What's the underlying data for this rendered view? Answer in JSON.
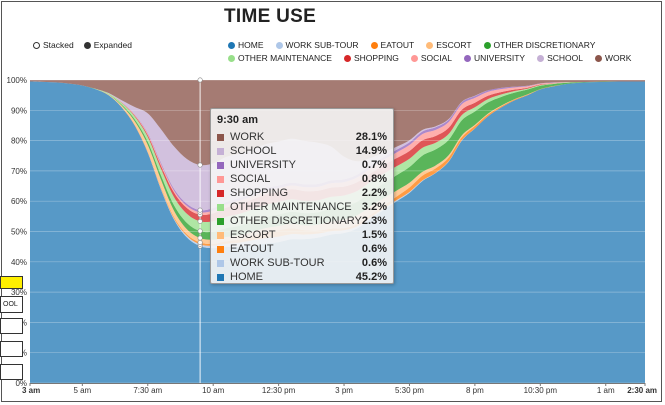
{
  "header": {
    "title": "TIME USE"
  },
  "mode_toggle": {
    "stacked": "Stacked",
    "expanded": "Expanded",
    "selected": "expanded"
  },
  "legend": [
    {
      "name": "HOME",
      "color": "#1f77b4"
    },
    {
      "name": "WORK SUB-TOUR",
      "color": "#aec7e8"
    },
    {
      "name": "EATOUT",
      "color": "#ff7f0e"
    },
    {
      "name": "ESCORT",
      "color": "#ffbb78"
    },
    {
      "name": "OTHER DISCRETIONARY",
      "color": "#2ca02c"
    },
    {
      "name": "OTHER MAINTENANCE",
      "color": "#98df8a"
    },
    {
      "name": "SHOPPING",
      "color": "#d62728"
    },
    {
      "name": "SOCIAL",
      "color": "#ff9896"
    },
    {
      "name": "UNIVERSITY",
      "color": "#9467bd"
    },
    {
      "name": "SCHOOL",
      "color": "#c5b0d5"
    },
    {
      "name": "WORK",
      "color": "#8c564b"
    }
  ],
  "chart_data": {
    "type": "area",
    "mode": "expanded",
    "x": [
      "3 am",
      "3:30 am",
      "4 am",
      "4:30 am",
      "5 am",
      "5:30 am",
      "6 am",
      "6:30 am",
      "7 am",
      "7:30 am",
      "8 am",
      "8:30 am",
      "9 am",
      "9:30 am",
      "10 am",
      "10:30 am",
      "11 am",
      "11:30 am",
      "12 pm",
      "12:30 pm",
      "1 pm",
      "1:30 pm",
      "2 pm",
      "2:30 pm",
      "3 pm",
      "3:30 pm",
      "4 pm",
      "4:30 pm",
      "5 pm",
      "5:30 pm",
      "6 pm",
      "6:30 pm",
      "7 pm",
      "7:30 pm",
      "8 pm",
      "8:30 pm",
      "9 pm",
      "9:30 pm",
      "10 pm",
      "10:30 pm",
      "11 pm",
      "11:30 pm",
      "12 am",
      "12:30 am",
      "1 am",
      "1:30 am",
      "2 am",
      "2:30 am"
    ],
    "x_ticks": [
      "3 am",
      "5 am",
      "7:30 am",
      "10 am",
      "12:30 pm",
      "3 pm",
      "5:30 pm",
      "8 pm",
      "10:30 pm",
      "1 am",
      "2:30 am"
    ],
    "ylim": [
      0,
      100
    ],
    "y_ticks": [
      "0%",
      "10%",
      "20%",
      "30%",
      "40%",
      "50%",
      "60%",
      "70%",
      "80%",
      "90%",
      "100%"
    ],
    "grid": true,
    "series": [
      {
        "name": "HOME",
        "color": "#1f77b4",
        "values": [
          99.5,
          99.4,
          99.2,
          98.8,
          98.2,
          97,
          95,
          91,
          85,
          76,
          64,
          54,
          48,
          45.2,
          44.5,
          44.5,
          45,
          45.5,
          46,
          46.5,
          47,
          47,
          47.5,
          48,
          49.5,
          51.5,
          54,
          57,
          60.5,
          64,
          68,
          72,
          76,
          80,
          84,
          88,
          91,
          93.5,
          95.5,
          97,
          98,
          98.7,
          99.1,
          99.3,
          99.4,
          99.5,
          99.5,
          99.5
        ]
      },
      {
        "name": "WORK SUB-TOUR",
        "color": "#aec7e8",
        "values": [
          0,
          0,
          0,
          0,
          0,
          0,
          0,
          0,
          0,
          0.1,
          0.2,
          0.3,
          0.5,
          0.6,
          0.8,
          1,
          1.3,
          1.6,
          1.8,
          1.8,
          1.7,
          1.5,
          1.3,
          1.1,
          0.9,
          0.7,
          0.6,
          0.5,
          0.4,
          0.3,
          0.2,
          0.1,
          0.1,
          0.1,
          0,
          0,
          0,
          0,
          0,
          0,
          0,
          0,
          0,
          0,
          0,
          0,
          0,
          0
        ]
      },
      {
        "name": "EATOUT",
        "color": "#ff7f0e",
        "values": [
          0,
          0,
          0,
          0,
          0,
          0,
          0,
          0.1,
          0.2,
          0.3,
          0.4,
          0.5,
          0.5,
          0.6,
          0.6,
          0.8,
          1,
          1.4,
          1.9,
          2.1,
          1.9,
          1.4,
          1,
          0.8,
          0.7,
          0.7,
          0.8,
          1,
          1.2,
          1.5,
          1.6,
          1.5,
          1.3,
          1,
          0.8,
          0.6,
          0.4,
          0.3,
          0.2,
          0.1,
          0.1,
          0,
          0,
          0,
          0,
          0,
          0,
          0
        ]
      },
      {
        "name": "ESCORT",
        "color": "#ffbb78",
        "values": [
          0,
          0,
          0,
          0,
          0,
          0,
          0.2,
          0.5,
          1.2,
          2.2,
          2.6,
          2.1,
          1.7,
          1.5,
          1.4,
          1.4,
          1.4,
          1.4,
          1.4,
          1.4,
          1.5,
          1.6,
          1.9,
          2.3,
          2.8,
          3,
          2.8,
          2.4,
          2,
          1.6,
          1.3,
          1,
          0.8,
          0.6,
          0.4,
          0.3,
          0.2,
          0.1,
          0.1,
          0,
          0,
          0,
          0,
          0,
          0,
          0,
          0,
          0
        ]
      },
      {
        "name": "OTHER DISCRETIONARY",
        "color": "#2ca02c",
        "values": [
          0,
          0,
          0,
          0,
          0,
          0,
          0.1,
          0.3,
          0.6,
          1,
          1.4,
          1.8,
          2.1,
          2.3,
          2.6,
          2.9,
          3.2,
          3.4,
          3.6,
          3.8,
          3.9,
          4,
          4.1,
          4.2,
          4.3,
          4.5,
          4.7,
          4.9,
          5.1,
          5.3,
          5.5,
          5.5,
          5.3,
          5,
          4.4,
          3.7,
          2.9,
          2.2,
          1.6,
          1.1,
          0.7,
          0.4,
          0.2,
          0.1,
          0.1,
          0,
          0,
          0
        ]
      },
      {
        "name": "OTHER MAINTENANCE",
        "color": "#98df8a",
        "values": [
          0,
          0,
          0,
          0,
          0,
          0.1,
          0.3,
          0.6,
          1,
          1.6,
          2.2,
          2.7,
          3,
          3.2,
          3.5,
          3.7,
          3.9,
          4,
          4.1,
          4.1,
          4.1,
          4,
          3.9,
          3.8,
          3.7,
          3.6,
          3.4,
          3.2,
          3,
          2.8,
          2.6,
          2.3,
          2,
          1.7,
          1.4,
          1.1,
          0.8,
          0.5,
          0.3,
          0.2,
          0.1,
          0.1,
          0,
          0,
          0,
          0,
          0,
          0
        ]
      },
      {
        "name": "SHOPPING",
        "color": "#d62728",
        "values": [
          0,
          0,
          0,
          0,
          0,
          0,
          0,
          0.1,
          0.3,
          0.6,
          1,
          1.5,
          1.9,
          2.2,
          2.6,
          3,
          3.2,
          3.3,
          3.4,
          3.4,
          3.3,
          3.2,
          3.1,
          3,
          2.9,
          2.9,
          2.8,
          2.8,
          2.7,
          2.6,
          2.5,
          2.3,
          2.1,
          1.8,
          1.5,
          1.1,
          0.8,
          0.5,
          0.3,
          0.2,
          0.1,
          0,
          0,
          0,
          0,
          0,
          0,
          0
        ]
      },
      {
        "name": "SOCIAL",
        "color": "#ff9896",
        "values": [
          0,
          0,
          0,
          0,
          0,
          0,
          0,
          0.1,
          0.2,
          0.4,
          0.5,
          0.6,
          0.7,
          0.8,
          0.9,
          1,
          1.1,
          1.1,
          1.2,
          1.2,
          1.2,
          1.3,
          1.3,
          1.4,
          1.5,
          1.6,
          1.7,
          1.8,
          1.9,
          2,
          2.1,
          2.1,
          2,
          1.8,
          1.6,
          1.3,
          1,
          0.7,
          0.5,
          0.3,
          0.2,
          0.1,
          0,
          0,
          0,
          0,
          0,
          0
        ]
      },
      {
        "name": "UNIVERSITY",
        "color": "#9467bd",
        "values": [
          0,
          0,
          0,
          0,
          0,
          0,
          0,
          0,
          0.1,
          0.3,
          0.5,
          0.6,
          0.7,
          0.7,
          0.8,
          0.8,
          0.9,
          0.9,
          0.9,
          0.9,
          0.9,
          0.9,
          0.9,
          0.9,
          0.9,
          0.9,
          0.9,
          0.9,
          0.9,
          0.9,
          0.9,
          0.9,
          0.8,
          0.7,
          0.6,
          0.5,
          0.4,
          0.3,
          0.2,
          0.1,
          0.1,
          0,
          0,
          0,
          0,
          0,
          0,
          0
        ]
      },
      {
        "name": "SCHOOL",
        "color": "#c5b0d5",
        "values": [
          0,
          0,
          0,
          0,
          0,
          0,
          0.1,
          0.6,
          2.5,
          6.5,
          11,
          14,
          14.8,
          14.9,
          14.8,
          14.8,
          14.7,
          14.6,
          14.5,
          14.5,
          14.4,
          14.2,
          13.5,
          11,
          7.5,
          4.5,
          2.5,
          1.5,
          1,
          0.7,
          0.5,
          0.3,
          0.2,
          0.1,
          0.1,
          0,
          0,
          0,
          0,
          0,
          0,
          0,
          0,
          0,
          0,
          0,
          0,
          0
        ]
      },
      {
        "name": "WORK",
        "color": "#8c564b",
        "values": [
          0.5,
          0.6,
          0.8,
          1.2,
          1.8,
          2.9,
          4.3,
          6.7,
          8.9,
          11,
          16.2,
          21.9,
          26.1,
          28.1,
          27.5,
          25.1,
          24.3,
          22.8,
          21.2,
          20.3,
          19.2,
          19.9,
          20.5,
          21.5,
          25.3,
          27.1,
          25.8,
          24.0,
          22.3,
          20.3,
          16.8,
          15.9,
          13.4,
          7.2,
          5.2,
          3.4,
          2.6,
          2.2,
          1.9,
          1.1,
          0.8,
          0.7,
          0.7,
          0.6,
          0.5,
          0.5,
          0.5,
          0.5
        ]
      }
    ]
  },
  "tooltip": {
    "time": "9:30 am",
    "rows": [
      {
        "name": "WORK",
        "value": "28.1%",
        "color": "#8c564b"
      },
      {
        "name": "SCHOOL",
        "value": "14.9%",
        "color": "#c5b0d5"
      },
      {
        "name": "UNIVERSITY",
        "value": "0.7%",
        "color": "#9467bd"
      },
      {
        "name": "SOCIAL",
        "value": "0.8%",
        "color": "#ff9896"
      },
      {
        "name": "SHOPPING",
        "value": "2.2%",
        "color": "#d62728"
      },
      {
        "name": "OTHER MAINTENANCE",
        "value": "3.2%",
        "color": "#98df8a"
      },
      {
        "name": "OTHER DISCRETIONARY",
        "value": "2.3%",
        "color": "#2ca02c"
      },
      {
        "name": "ESCORT",
        "value": "1.5%",
        "color": "#ffbb78"
      },
      {
        "name": "EATOUT",
        "value": "0.6%",
        "color": "#ff7f0e"
      },
      {
        "name": "WORK SUB-TOUR",
        "value": "0.6%",
        "color": "#aec7e8"
      },
      {
        "name": "HOME",
        "value": "45.2%",
        "color": "#1f77b4"
      }
    ]
  },
  "left_panel": {
    "label": "OOL"
  }
}
